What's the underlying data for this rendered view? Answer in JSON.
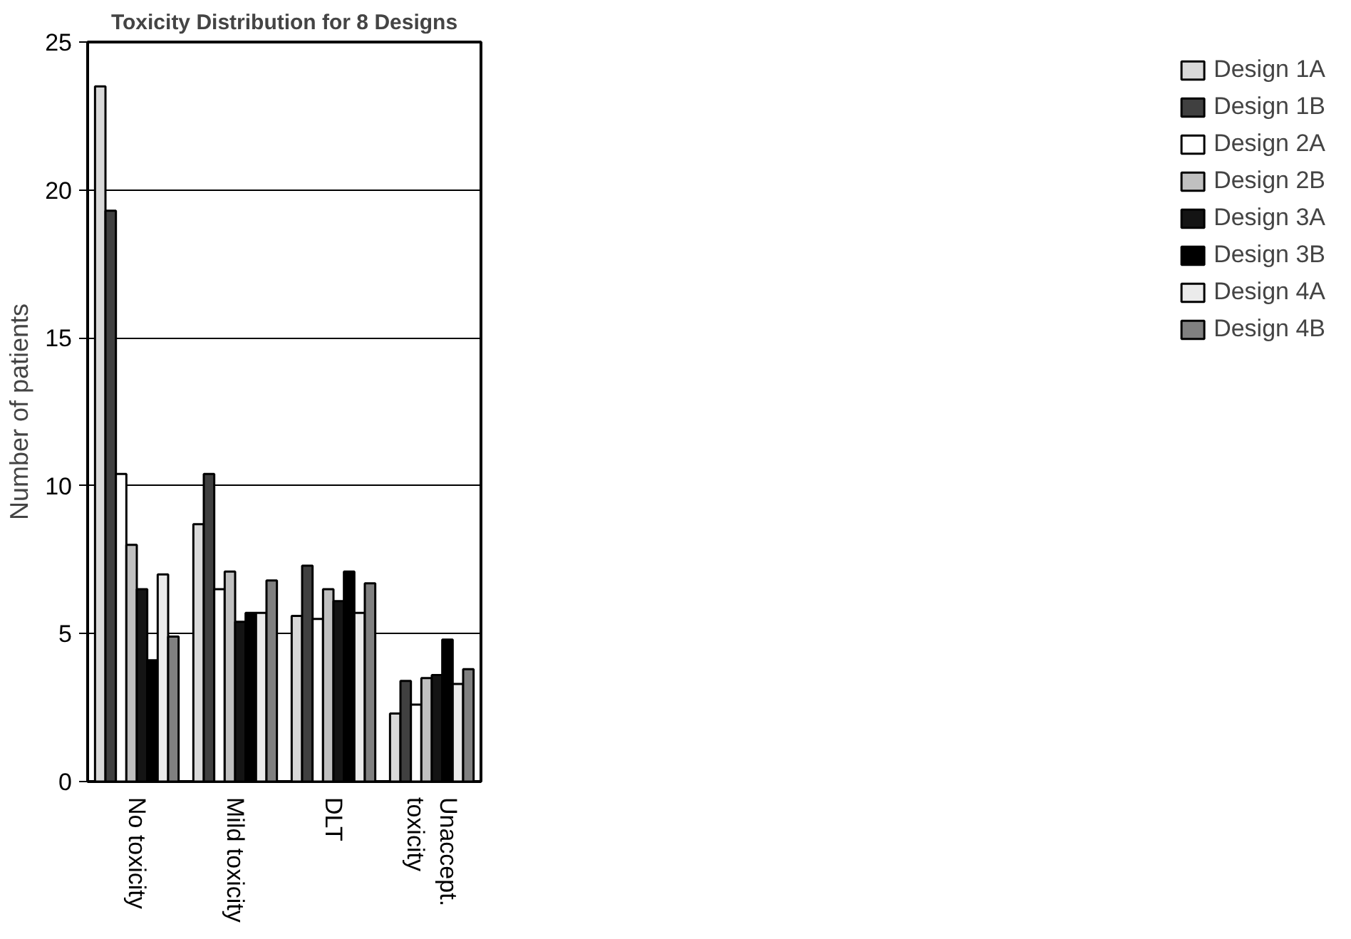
{
  "chart_data": {
    "type": "bar",
    "title": "Toxicity Distribution for 8 Designs",
    "ylabel": "Number of patients",
    "categories": [
      "No toxicity",
      "Mild toxicity",
      "DLT",
      "Unaccept.\ntoxicity"
    ],
    "series": [
      {
        "name": "Design 1A",
        "color": "#d9d9d9",
        "values": [
          23.5,
          8.7,
          5.6,
          2.3
        ]
      },
      {
        "name": "Design 1B",
        "color": "#404040",
        "values": [
          19.3,
          10.4,
          7.3,
          3.4
        ]
      },
      {
        "name": "Design 2A",
        "color": "#ffffff",
        "values": [
          10.4,
          6.5,
          5.5,
          2.6
        ]
      },
      {
        "name": "Design 2B",
        "color": "#c0c0c0",
        "values": [
          8.0,
          7.1,
          6.5,
          3.5
        ]
      },
      {
        "name": "Design 3A",
        "color": "#141414",
        "values": [
          6.5,
          5.4,
          6.1,
          3.6
        ]
      },
      {
        "name": "Design 3B",
        "color": "#000000",
        "values": [
          4.1,
          5.7,
          7.1,
          4.8
        ]
      },
      {
        "name": "Design 4A",
        "color": "#ebebeb",
        "values": [
          7.0,
          5.7,
          5.7,
          3.3
        ]
      },
      {
        "name": "Design 4B",
        "color": "#808080",
        "values": [
          4.9,
          6.8,
          6.7,
          3.8
        ]
      }
    ],
    "ylim": [
      0,
      25
    ],
    "yticks": [
      0,
      5,
      10,
      15,
      20,
      25
    ],
    "grid": "y",
    "legend": "right"
  }
}
